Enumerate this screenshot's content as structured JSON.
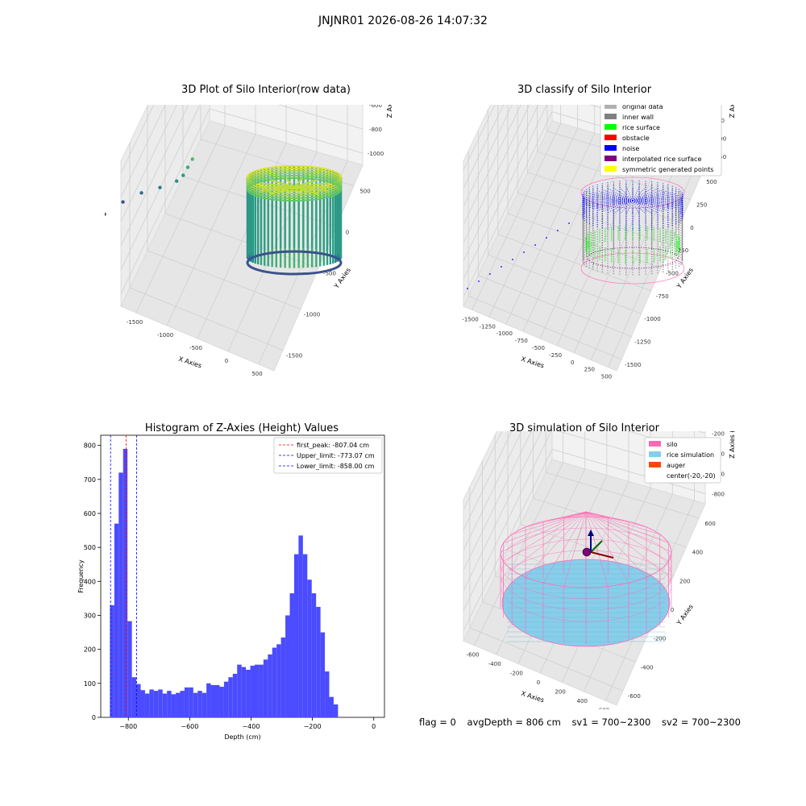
{
  "figure": {
    "suptitle": "JNJNR01 2026-08-26 14:07:32",
    "status": {
      "flag": "flag = 0",
      "avg_depth": "avgDepth = 806 cm",
      "sv1": "sv1 = 700~2300",
      "sv2": "sv2 = 700~2300"
    }
  },
  "chart_data": [
    {
      "type": "scatter3d",
      "title": "3D Plot of Silo Interior(row data)",
      "xlabel": "X Axies",
      "ylabel": "Y Axies",
      "zlabel": "Z Axies (Depth)",
      "x_ticks": [
        "-1500",
        "-1000",
        "-500",
        "0",
        "500"
      ],
      "y_ticks": [
        "500",
        "0",
        "-500",
        "-1000",
        "-1500"
      ],
      "z_ticks": [
        "0",
        "-200",
        "-400",
        "-600",
        "-800",
        "-1000"
      ],
      "colormap": "viridis",
      "cylinder": {
        "center": [
          0,
          0
        ],
        "radius": 500,
        "z_top": -100,
        "z_bottom": -1050
      },
      "outliers": [
        [
          -1450,
          -1400,
          -1050
        ],
        [
          -1200,
          -1150,
          -950
        ],
        [
          -1000,
          -950,
          -820
        ],
        [
          -800,
          -780,
          -720
        ],
        [
          -600,
          -560,
          -640
        ],
        [
          -420,
          -390,
          -560
        ],
        [
          -300,
          -260,
          -430
        ],
        [
          -250,
          -220,
          -360
        ],
        [
          -350,
          -300,
          -500
        ]
      ]
    },
    {
      "type": "scatter3d",
      "title": "3D classify of Silo Interior",
      "xlabel": "X Axies",
      "ylabel": "Y Axies",
      "zlabel": "Z Axies (Depth)",
      "x_ticks": [
        "-1500",
        "-1250",
        "-1000",
        "-750",
        "-500",
        "-250",
        "0",
        "250",
        "500"
      ],
      "y_ticks": [
        "500",
        "250",
        "0",
        "-250",
        "-500",
        "-750",
        "-1000",
        "-1250",
        "-1500"
      ],
      "z_ticks": [
        "500",
        "250",
        "0",
        "-250",
        "-500",
        "-750",
        "-1000",
        "-1250"
      ],
      "legend": [
        {
          "label": "original data",
          "color": "#b0b0b0"
        },
        {
          "label": "inner wall",
          "color": "#808080"
        },
        {
          "label": "rice surface",
          "color": "#00ff00"
        },
        {
          "label": "obstacle",
          "color": "#ff0000"
        },
        {
          "label": "noise",
          "color": "#0000ff"
        },
        {
          "label": "interpolated rice surface",
          "color": "#800080"
        },
        {
          "label": "symmetric generated points",
          "color": "#ffff00"
        }
      ],
      "legend_loc": "upper right"
    },
    {
      "type": "histogram",
      "title": "Histogram of Z-Axies (Height) Values",
      "xlabel": "Depth (cm)",
      "ylabel": "Frequency",
      "xlim": [
        -890,
        35
      ],
      "ylim": [
        0,
        830
      ],
      "x_ticks": [
        -800,
        -600,
        -400,
        -200,
        0
      ],
      "y_ticks": [
        0,
        100,
        200,
        300,
        400,
        500,
        600,
        700,
        800
      ],
      "bar_color": "#4b4bff",
      "bin_start": -860,
      "bin_width": 14.3,
      "values": [
        330,
        570,
        720,
        790,
        283,
        118,
        98,
        80,
        70,
        82,
        78,
        82,
        70,
        78,
        68,
        72,
        78,
        88,
        88,
        72,
        78,
        72,
        100,
        95,
        95,
        90,
        105,
        118,
        128,
        155,
        148,
        140,
        152,
        155,
        155,
        170,
        185,
        205,
        215,
        235,
        300,
        365,
        480,
        535,
        480,
        405,
        365,
        325,
        250,
        135,
        60,
        38
      ],
      "lines": [
        {
          "label": "first_peak: -807.04 cm",
          "x": -807.04,
          "color": "#ff0000"
        },
        {
          "label": "Upper_limit: -773.07 cm",
          "x": -773.07,
          "color": "#0000ff"
        },
        {
          "label": "Lower_limit: -858.00 cm",
          "x": -858.0,
          "color": "#0000ff"
        }
      ],
      "legend_loc": "upper right"
    },
    {
      "type": "surface3d",
      "title": "3D simulation of Silo Interior",
      "xlabel": "X Axies",
      "ylabel": "Y Axies",
      "zlabel": "Z Axies (Depth)",
      "x_ticks": [
        "-600",
        "-400",
        "-200",
        "0",
        "200",
        "400",
        "600"
      ],
      "y_ticks": [
        "600",
        "400",
        "200",
        "0",
        "-200",
        "-400",
        "-600"
      ],
      "z_ticks": [
        "400",
        "200",
        "0",
        "-200",
        "-400",
        "-600",
        "-800"
      ],
      "legend": [
        {
          "label": "silo",
          "color": "#ff69b4"
        },
        {
          "label": "rice simulation",
          "color": "#87ceeb"
        },
        {
          "label": "auger",
          "color": "#ff4500"
        },
        {
          "label": "center(-20,-20)",
          "color": ""
        }
      ],
      "legend_loc": "upper right"
    }
  ]
}
